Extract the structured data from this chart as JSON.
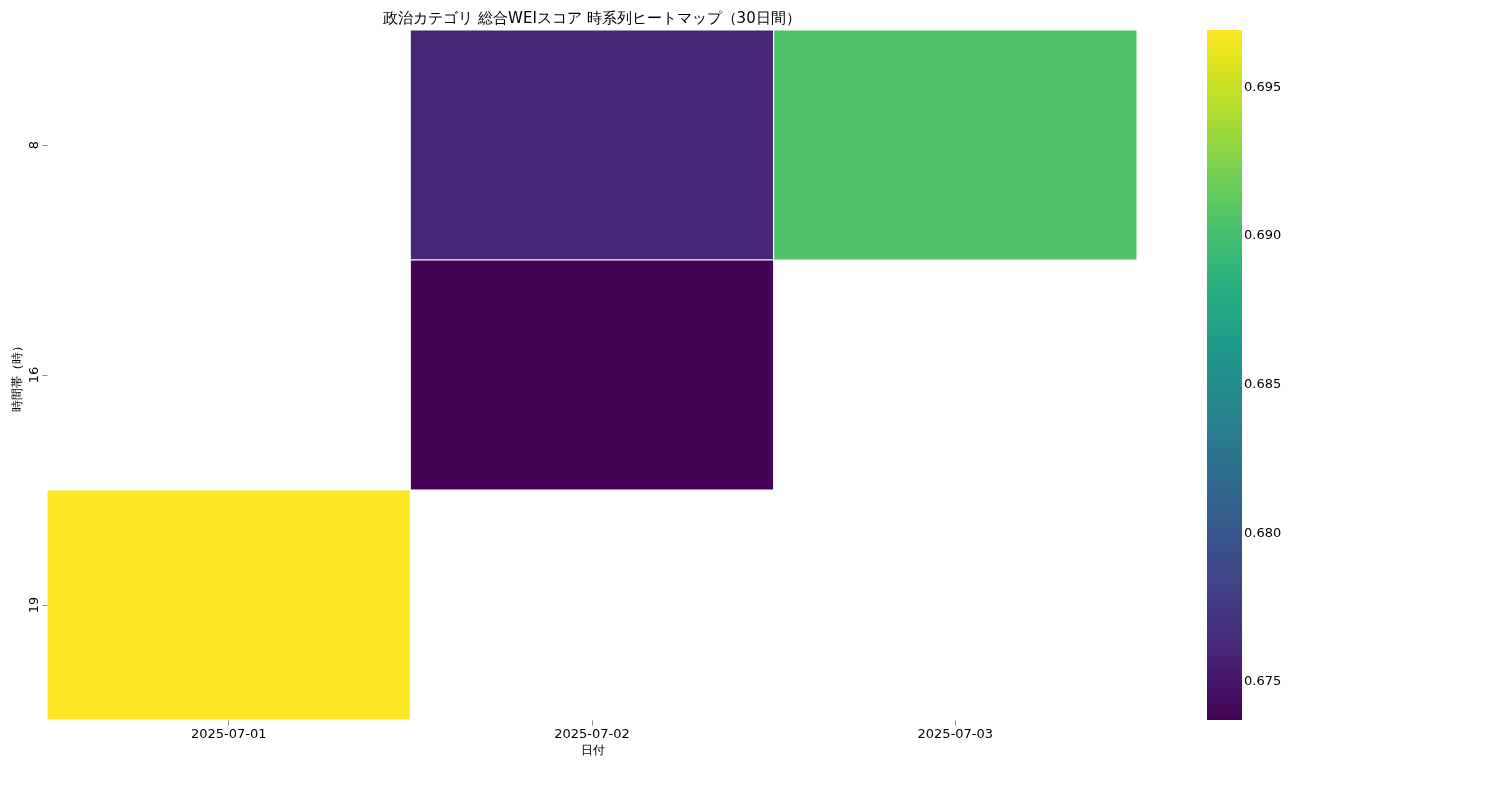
{
  "chart_data": {
    "type": "heatmap",
    "title": "政治カテゴリ 総合WEIスコア 時系列ヒートマップ（30日間）",
    "xlabel": "日付",
    "ylabel": "時間帯（時）",
    "categories": [
      "2025-07-01",
      "2025-07-02",
      "2025-07-03"
    ],
    "y_categories": [
      "8",
      "16",
      "19"
    ],
    "cells": [
      [
        null,
        0.676,
        0.6905
      ],
      [
        null,
        0.6738,
        null
      ],
      [
        0.6969,
        null,
        null
      ]
    ],
    "clim": [
      0.6737,
      0.6969
    ],
    "cticks": [
      0.675,
      {
        "value": 0.68,
        "label": "0.680"
      },
      0.685,
      {
        "value": 0.69,
        "label": "0.690"
      },
      0.695
    ]
  }
}
